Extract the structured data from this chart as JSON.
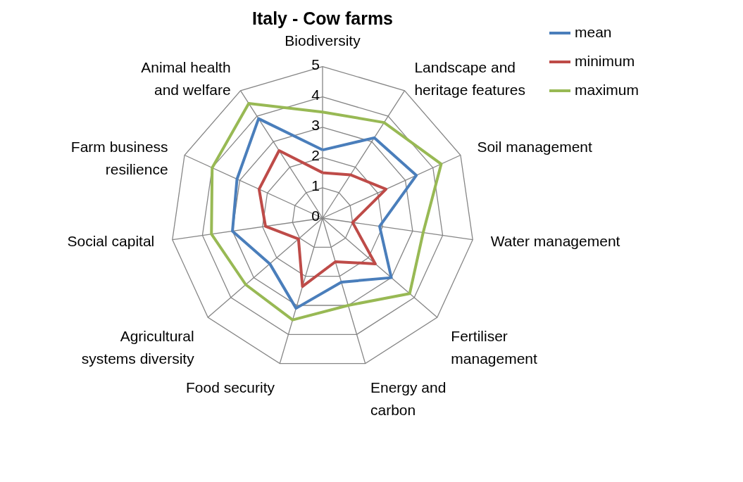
{
  "chart_data": {
    "type": "radar",
    "title": "Italy - Cow farms",
    "categories": [
      "Biodiversity",
      "Landscape and heritage features",
      "Soil management",
      "Water management",
      "Fertiliser management",
      "Energy and carbon",
      "Food security",
      "Agricultural systems diversity",
      "Social capital",
      "Farm business resilience",
      "Animal health and welfare"
    ],
    "series": [
      {
        "name": "mean",
        "color": "#4a7ebb",
        "values": [
          2.25,
          3.15,
          3.4,
          1.9,
          3.0,
          2.2,
          3.1,
          2.3,
          3.0,
          3.1,
          3.9
        ]
      },
      {
        "name": "minimum",
        "color": "#be4b48",
        "values": [
          1.5,
          1.7,
          2.3,
          1.0,
          2.3,
          1.5,
          2.35,
          1.05,
          1.9,
          2.3,
          2.65
        ]
      },
      {
        "name": "maximum",
        "color": "#98b954",
        "values": [
          3.5,
          3.75,
          4.3,
          3.35,
          3.8,
          3.0,
          3.5,
          3.35,
          3.7,
          4.0,
          4.5
        ]
      }
    ],
    "ylim": [
      0,
      5
    ],
    "yticks": [
      0,
      1,
      2,
      3,
      4,
      5
    ],
    "grid": true,
    "legend": "right",
    "marker": "none",
    "line_style": "solid"
  }
}
